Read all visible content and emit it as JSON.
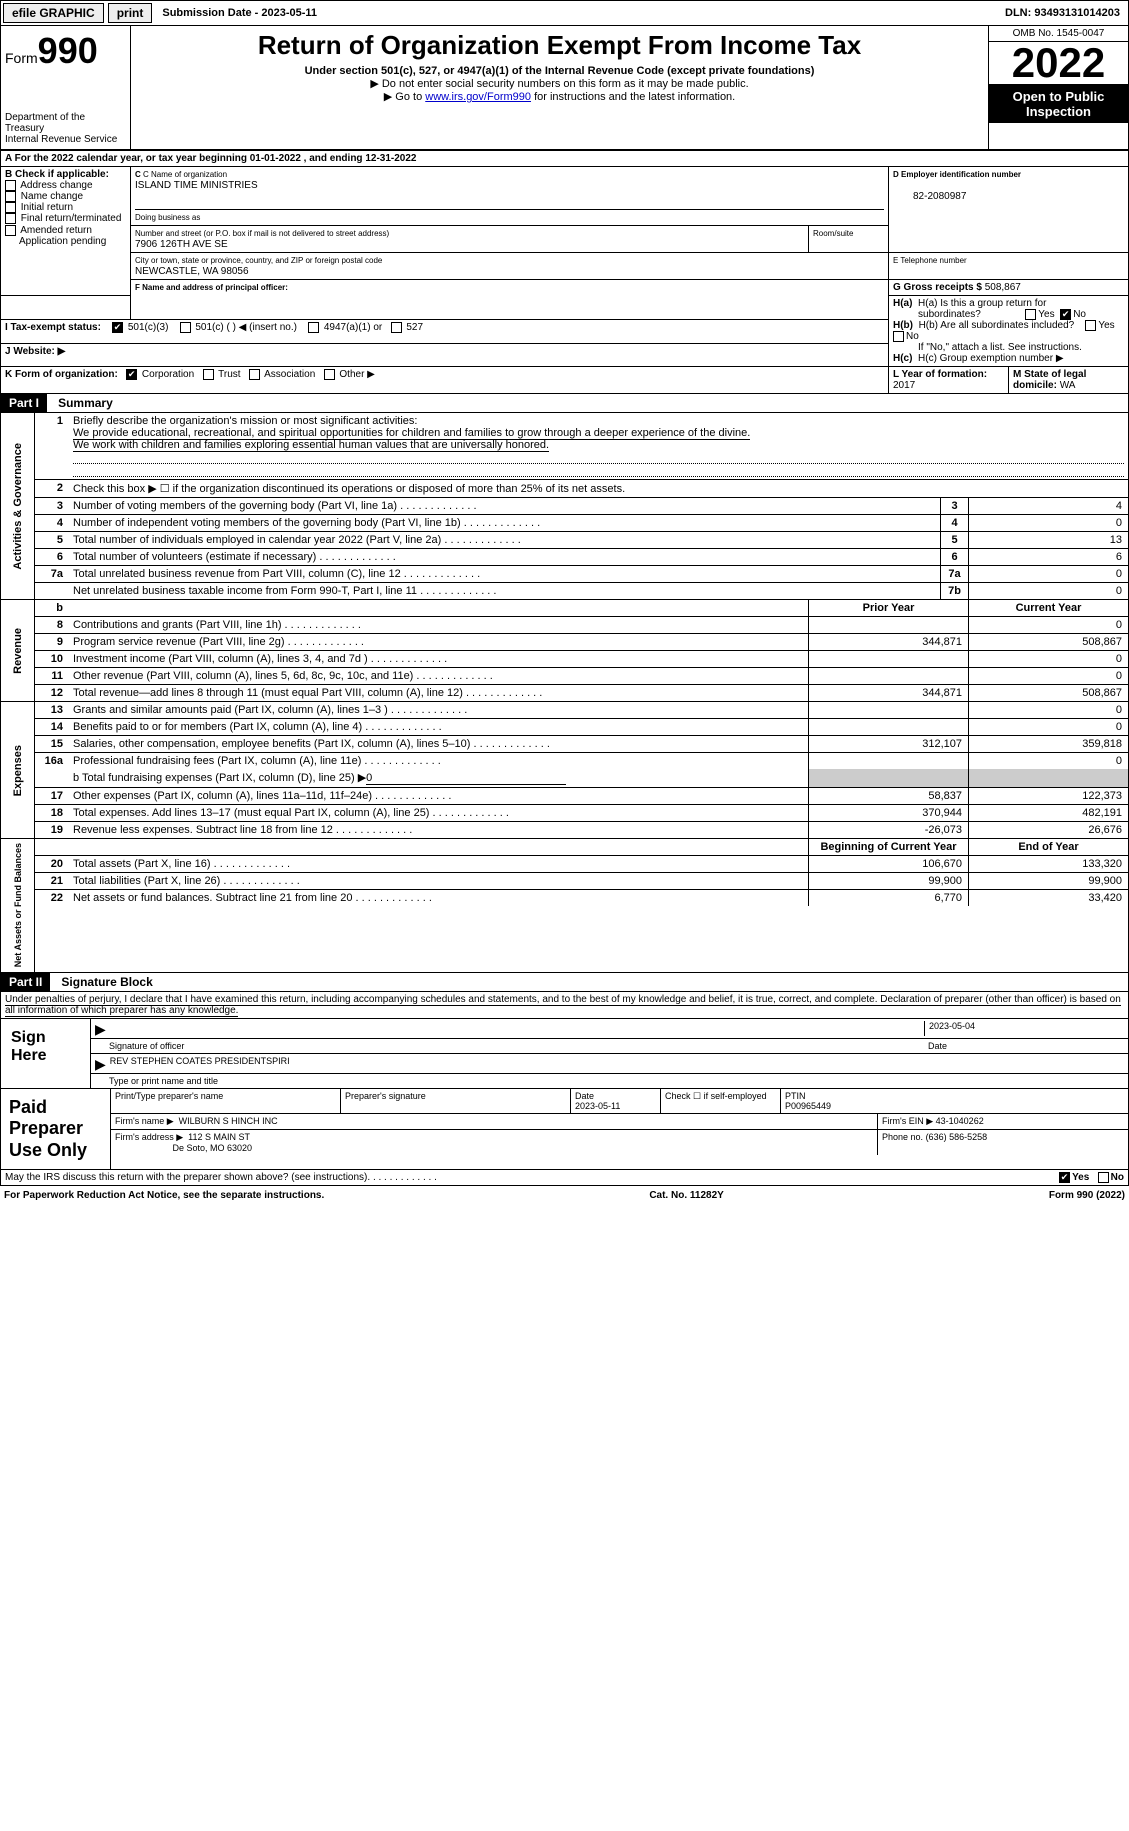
{
  "topbar": {
    "efile": "efile GRAPHIC",
    "print": "print",
    "submission": "Submission Date - 2023-05-11",
    "dln": "DLN: 93493131014203"
  },
  "header": {
    "form_label": "Form",
    "form_num": "990",
    "title": "Return of Organization Exempt From Income Tax",
    "subtitle": "Under section 501(c), 527, or 4947(a)(1) of the Internal Revenue Code (except private foundations)",
    "line2": "▶ Do not enter social security numbers on this form as it may be made public.",
    "line3_pre": "▶ Go to ",
    "line3_link": "www.irs.gov/Form990",
    "line3_post": " for instructions and the latest information.",
    "dept": "Department of the Treasury",
    "irs": "Internal Revenue Service",
    "omb": "OMB No. 1545-0047",
    "year": "2022",
    "inspect1": "Open to Public",
    "inspect2": "Inspection"
  },
  "line_a": "A For the 2022 calendar year, or tax year beginning 01-01-2022    , and ending 12-31-2022",
  "box_b": {
    "label": "B Check if applicable:",
    "items": [
      "Address change",
      "Name change",
      "Initial return",
      "Final return/terminated",
      "Amended return",
      "Application pending"
    ]
  },
  "box_c": {
    "lbl": "C Name of organization",
    "name": "ISLAND TIME MINISTRIES",
    "dba_lbl": "Doing business as",
    "addr_lbl": "Number and street (or P.O. box if mail is not delivered to street address)",
    "room_lbl": "Room/suite",
    "addr": "7906 126TH AVE SE",
    "city_lbl": "City or town, state or province, country, and ZIP or foreign postal code",
    "city": "NEWCASTLE, WA  98056"
  },
  "box_d": {
    "lbl": "D Employer identification number",
    "val": "82-2080987"
  },
  "box_e": {
    "lbl": "E Telephone number",
    "val": ""
  },
  "box_g": {
    "lbl": "G Gross receipts $",
    "val": "508,867"
  },
  "box_f": {
    "lbl": "F Name and address of principal officer:"
  },
  "box_h": {
    "a": "H(a)  Is this a group return for",
    "a2": "subordinates?",
    "b": "H(b)  Are all subordinates included?",
    "no_note": "If \"No,\" attach a list. See instructions.",
    "c": "H(c)  Group exemption number ▶",
    "yes": "Yes",
    "no": "No"
  },
  "box_i": {
    "lbl": "I    Tax-exempt status:",
    "c3": "501(c)(3)",
    "c": "501(c) (  ) ◀ (insert no.)",
    "a1": "4947(a)(1) or",
    "527": "527"
  },
  "box_j": {
    "lbl": "J   Website: ▶"
  },
  "box_k": {
    "lbl": "K Form of organization:",
    "corp": "Corporation",
    "trust": "Trust",
    "assoc": "Association",
    "other": "Other ▶"
  },
  "box_l": {
    "lbl": "L Year of formation:",
    "val": "2017"
  },
  "box_m": {
    "lbl": "M State of legal domicile:",
    "val": "WA"
  },
  "part1": {
    "hdr": "Part I",
    "title": "Summary"
  },
  "summary": {
    "governance_label": "Activities & Governance",
    "q1": "Briefly describe the organization's mission or most significant activities:",
    "mission1": "We provide educational, recreational, and spiritual opportunities for children and families to grow through a deeper experience of the divine.",
    "mission2": "We work with children and families exploring essential human values that are universally honored.",
    "q2": "Check this box ▶ ☐  if the organization discontinued its operations or disposed of more than 25% of its net assets.",
    "rows_gov": [
      {
        "n": "3",
        "d": "Number of voting members of the governing body (Part VI, line 1a)",
        "b": "3",
        "v": "4"
      },
      {
        "n": "4",
        "d": "Number of independent voting members of the governing body (Part VI, line 1b)",
        "b": "4",
        "v": "0"
      },
      {
        "n": "5",
        "d": "Total number of individuals employed in calendar year 2022 (Part V, line 2a)",
        "b": "5",
        "v": "13"
      },
      {
        "n": "6",
        "d": "Total number of volunteers (estimate if necessary)",
        "b": "6",
        "v": "6"
      },
      {
        "n": "7a",
        "d": "Total unrelated business revenue from Part VIII, column (C), line 12",
        "b": "7a",
        "v": "0"
      },
      {
        "n": "",
        "d": "Net unrelated business taxable income from Form 990-T, Part I, line 11",
        "b": "7b",
        "v": "0"
      }
    ],
    "revenue_label": "Revenue",
    "prior": "Prior Year",
    "current": "Current Year",
    "rows_rev": [
      {
        "n": "8",
        "d": "Contributions and grants (Part VIII, line 1h)",
        "p": "",
        "c": "0"
      },
      {
        "n": "9",
        "d": "Program service revenue (Part VIII, line 2g)",
        "p": "344,871",
        "c": "508,867"
      },
      {
        "n": "10",
        "d": "Investment income (Part VIII, column (A), lines 3, 4, and 7d )",
        "p": "",
        "c": "0"
      },
      {
        "n": "11",
        "d": "Other revenue (Part VIII, column (A), lines 5, 6d, 8c, 9c, 10c, and 11e)",
        "p": "",
        "c": "0"
      },
      {
        "n": "12",
        "d": "Total revenue—add lines 8 through 11 (must equal Part VIII, column (A), line 12)",
        "p": "344,871",
        "c": "508,867"
      }
    ],
    "expenses_label": "Expenses",
    "rows_exp": [
      {
        "n": "13",
        "d": "Grants and similar amounts paid (Part IX, column (A), lines 1–3 )",
        "p": "",
        "c": "0"
      },
      {
        "n": "14",
        "d": "Benefits paid to or for members (Part IX, column (A), line 4)",
        "p": "",
        "c": "0"
      },
      {
        "n": "15",
        "d": "Salaries, other compensation, employee benefits (Part IX, column (A), lines 5–10)",
        "p": "312,107",
        "c": "359,818"
      },
      {
        "n": "16a",
        "d": "Professional fundraising fees (Part IX, column (A), line 11e)",
        "p": "",
        "c": "0"
      }
    ],
    "line_b_pre": "b   Total fundraising expenses (Part IX, column (D), line 25) ▶",
    "line_b_val": "0",
    "rows_exp2": [
      {
        "n": "17",
        "d": "Other expenses (Part IX, column (A), lines 11a–11d, 11f–24e)",
        "p": "58,837",
        "c": "122,373"
      },
      {
        "n": "18",
        "d": "Total expenses. Add lines 13–17 (must equal Part IX, column (A), line 25)",
        "p": "370,944",
        "c": "482,191"
      },
      {
        "n": "19",
        "d": "Revenue less expenses. Subtract line 18 from line 12",
        "p": "-26,073",
        "c": "26,676"
      }
    ],
    "net_label": "Net Assets or Fund Balances",
    "boy": "Beginning of Current Year",
    "eoy": "End of Year",
    "rows_net": [
      {
        "n": "20",
        "d": "Total assets (Part X, line 16)",
        "p": "106,670",
        "c": "133,320"
      },
      {
        "n": "21",
        "d": "Total liabilities (Part X, line 26)",
        "p": "99,900",
        "c": "99,900"
      },
      {
        "n": "22",
        "d": "Net assets or fund balances. Subtract line 21 from line 20",
        "p": "6,770",
        "c": "33,420"
      }
    ]
  },
  "part2": {
    "hdr": "Part II",
    "title": "Signature Block"
  },
  "jurat": "Under penalties of perjury, I declare that I have examined this return, including accompanying schedules and statements, and to the best of my knowledge and belief, it is true, correct, and complete. Declaration of preparer (other than officer) is based on all information of which preparer has any knowledge.",
  "sign": {
    "here": "Sign Here",
    "sig_lbl": "Signature of officer",
    "date_lbl": "Date",
    "date": "2023-05-04",
    "name": "REV STEPHEN COATES PRESIDENTSPIRI",
    "name_lbl": "Type or print name and title"
  },
  "paid": {
    "hdr": "Paid Preparer Use Only",
    "prep_name_lbl": "Print/Type preparer's name",
    "prep_sig_lbl": "Preparer's signature",
    "date_lbl": "Date",
    "date": "2023-05-11",
    "check_lbl": "Check ☐ if self-employed",
    "ptin_lbl": "PTIN",
    "ptin": "P00965449",
    "firm_name_lbl": "Firm's name    ▶",
    "firm_name": "WILBURN S HINCH INC",
    "firm_ein_lbl": "Firm's EIN ▶",
    "firm_ein": "43-1040262",
    "firm_addr_lbl": "Firm's address ▶",
    "firm_addr1": "112 S MAIN ST",
    "firm_addr2": "De Soto, MO  63020",
    "phone_lbl": "Phone no.",
    "phone": "(636) 586-5258"
  },
  "discuss": "May the IRS discuss this return with the preparer shown above? (see instructions)",
  "footer": {
    "pra": "For Paperwork Reduction Act Notice, see the separate instructions.",
    "cat": "Cat. No. 11282Y",
    "form": "Form 990 (2022)"
  }
}
